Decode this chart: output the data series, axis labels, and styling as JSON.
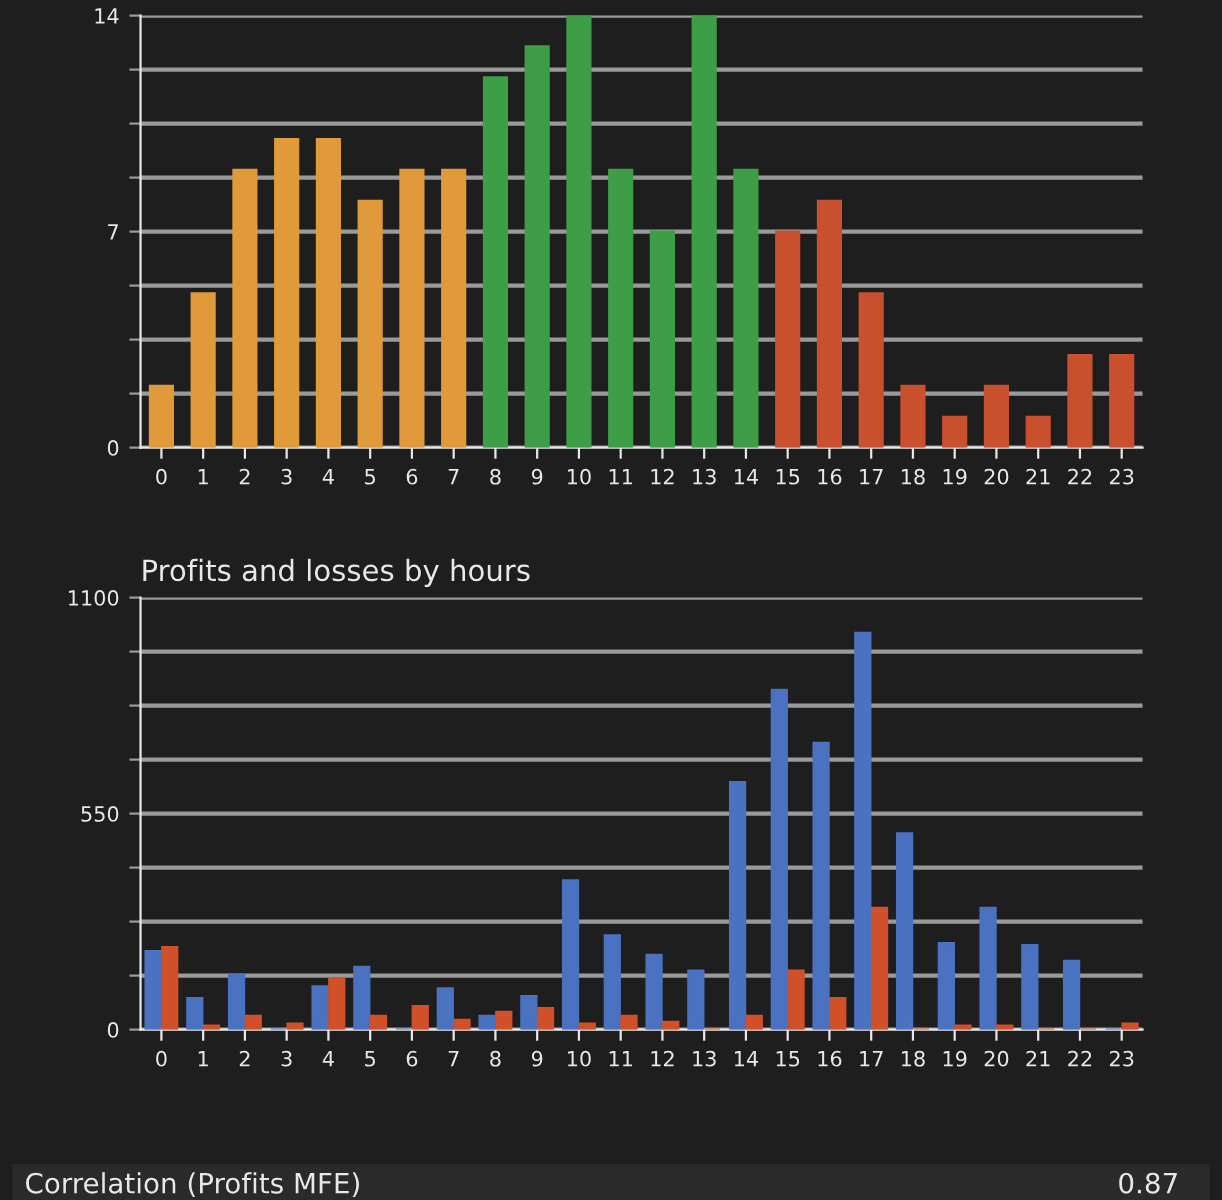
{
  "chart_data": [
    {
      "type": "bar",
      "categories": [
        "0",
        "1",
        "2",
        "3",
        "4",
        "5",
        "6",
        "7",
        "8",
        "9",
        "10",
        "11",
        "12",
        "13",
        "14",
        "15",
        "16",
        "17",
        "18",
        "19",
        "20",
        "21",
        "22",
        "23"
      ],
      "values": [
        2,
        5,
        9,
        10,
        10,
        8,
        9,
        9,
        12,
        13,
        14,
        9,
        7,
        14,
        9,
        7,
        8,
        5,
        2,
        1,
        2,
        1,
        3,
        3
      ],
      "colors": [
        "#e09a3a",
        "#e09a3a",
        "#e09a3a",
        "#e09a3a",
        "#e09a3a",
        "#e09a3a",
        "#e09a3a",
        "#e09a3a",
        "#3e9e48",
        "#3e9e48",
        "#3e9e48",
        "#3e9e48",
        "#3e9e48",
        "#3e9e48",
        "#3e9e48",
        "#c9502e",
        "#c9502e",
        "#c9502e",
        "#c9502e",
        "#c9502e",
        "#c9502e",
        "#c9502e",
        "#c9502e",
        "#c9502e"
      ],
      "ylim": [
        0,
        14
      ],
      "yticks": [
        0,
        {
          "value": 1.75,
          "label": null
        },
        {
          "value": 3.5,
          "label": null
        },
        {
          "value": 5.25,
          "label": null
        },
        7,
        {
          "value": 8.75,
          "label": null
        },
        {
          "value": 10.5,
          "label": null
        },
        {
          "value": 12.25,
          "label": null
        },
        14
      ],
      "grid": "y",
      "legend": false
    },
    {
      "type": "bar",
      "title": "Profits and losses by hours",
      "categories": [
        "0",
        "1",
        "2",
        "3",
        "4",
        "5",
        "6",
        "7",
        "8",
        "9",
        "10",
        "11",
        "12",
        "13",
        "14",
        "15",
        "16",
        "17",
        "18",
        "19",
        "20",
        "21",
        "22",
        "23"
      ],
      "series": [
        {
          "color": "#4a72c0",
          "values": [
            200,
            80,
            140,
            0,
            110,
            160,
            0,
            105,
            35,
            85,
            380,
            240,
            190,
            150,
            630,
            865,
            730,
            1010,
            500,
            220,
            310,
            215,
            175,
            0
          ]
        },
        {
          "color": "#d0502a",
          "values": [
            210,
            10,
            35,
            15,
            130,
            35,
            60,
            25,
            45,
            55,
            15,
            35,
            20,
            0,
            35,
            150,
            80,
            310,
            0,
            10,
            10,
            0,
            0,
            15
          ]
        }
      ],
      "ylim": [
        0,
        1100
      ],
      "yticks": [
        0,
        {
          "value": 137.5,
          "label": null
        },
        {
          "value": 275,
          "label": null
        },
        {
          "value": 412.5,
          "label": null
        },
        550,
        {
          "value": 687.5,
          "label": null
        },
        {
          "value": 825,
          "label": null
        },
        {
          "value": 962.5,
          "label": null
        },
        1100
      ],
      "grid": "y",
      "legend": false,
      "annotations": [
        "Correlation (Profits MFE)",
        "0.87"
      ]
    }
  ]
}
